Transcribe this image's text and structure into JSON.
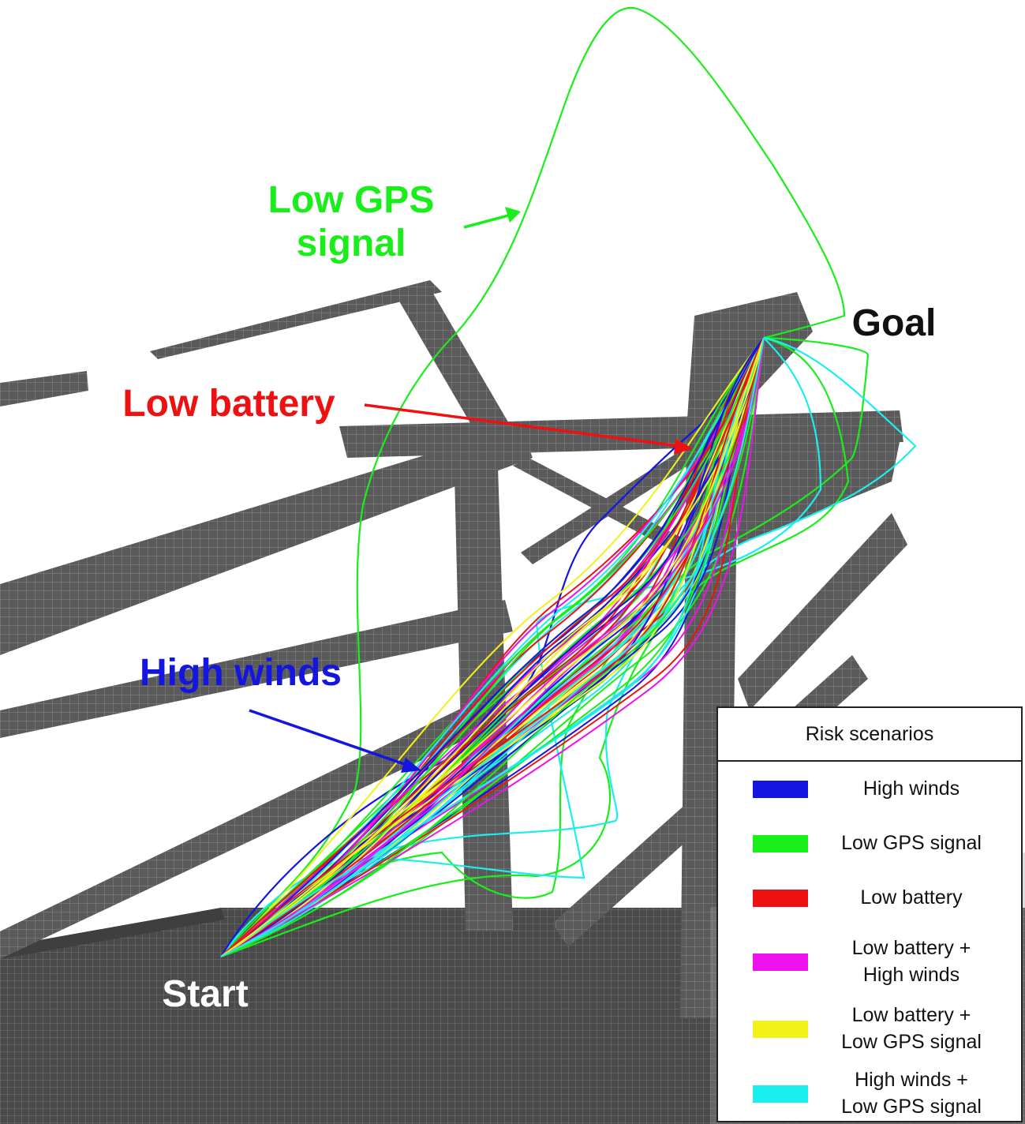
{
  "annotations": {
    "low_gps": "Low GPS\nsignal",
    "low_battery": "Low battery",
    "high_winds": "High winds",
    "goal": "Goal",
    "start": "Start"
  },
  "colors": {
    "high_winds": "#1515e0",
    "low_gps": "#1aee1a",
    "low_battery": "#ee1111",
    "low_battery_high_winds": "#ee11ee",
    "low_battery_low_gps": "#f2f21a",
    "high_winds_low_gps": "#1aeeee",
    "structure": "#555555"
  },
  "legend": {
    "title": "Risk scenarios",
    "items": [
      {
        "label": "High winds",
        "color": "#1515e0"
      },
      {
        "label": "Low GPS signal",
        "color": "#1aee1a"
      },
      {
        "label": "Low battery",
        "color": "#ee1111"
      },
      {
        "label": "Low battery +\nHigh winds",
        "color": "#ee11ee"
      },
      {
        "label": "Low battery +\nLow GPS signal",
        "color": "#f2f21a"
      },
      {
        "label": "High winds +\nLow GPS signal",
        "color": "#1aeeee"
      }
    ]
  }
}
